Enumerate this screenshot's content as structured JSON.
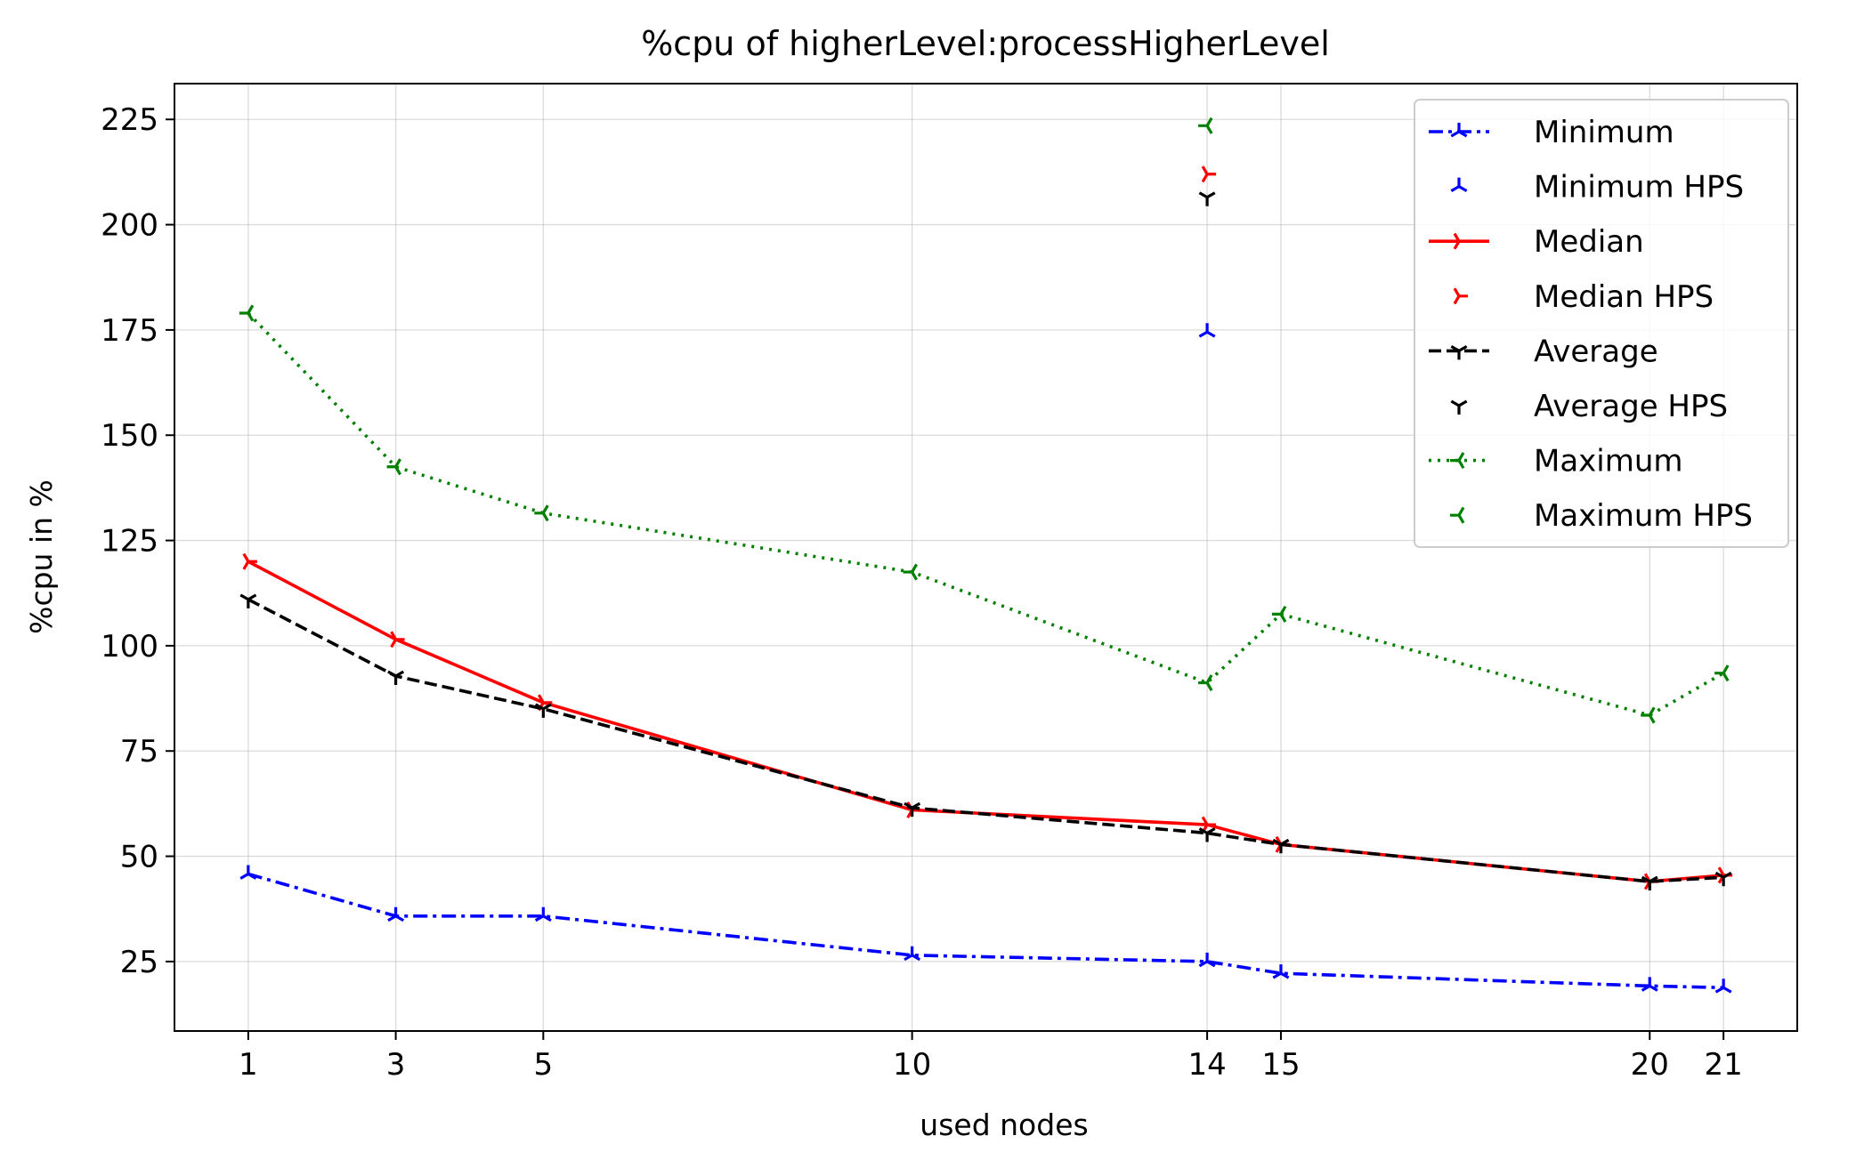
{
  "chart_data": {
    "type": "line",
    "title": "%cpu of higherLevel:processHigherLevel",
    "xlabel": "used nodes",
    "ylabel": "%cpu in %",
    "x_ticks": [
      1,
      3,
      5,
      10,
      14,
      15,
      20,
      21
    ],
    "y_ticks": [
      25,
      50,
      75,
      100,
      125,
      150,
      175,
      200,
      225
    ],
    "xlim": [
      -0.0,
      22.0
    ],
    "ylim": [
      8.5,
      233.5
    ],
    "grid": true,
    "legend_position": "top-right",
    "x": [
      1,
      3,
      5,
      10,
      14,
      15,
      20,
      21
    ],
    "series": [
      {
        "name": "Minimum",
        "values": [
          45.8,
          35.8,
          35.8,
          26.5,
          25.0,
          22.2,
          19.2,
          18.8
        ],
        "color": "#0000ff",
        "dash": "dashdot",
        "marker": "tri-up"
      },
      {
        "name": "Median",
        "values": [
          120.0,
          101.5,
          86.5,
          61.0,
          57.5,
          52.8,
          44.0,
          45.5
        ],
        "color": "#ff0000",
        "dash": "solid",
        "marker": "tri-right"
      },
      {
        "name": "Average",
        "values": [
          111.0,
          92.8,
          85.0,
          61.5,
          55.5,
          52.8,
          44.0,
          45.0
        ],
        "color": "#000000",
        "dash": "dashed",
        "marker": "tri-down"
      },
      {
        "name": "Maximum",
        "values": [
          179.0,
          142.5,
          131.5,
          117.5,
          91.2,
          107.5,
          83.5,
          93.5
        ],
        "color": "#008000",
        "dash": "dotted",
        "marker": "tri-left"
      }
    ],
    "hps_points": [
      {
        "name": "Minimum HPS",
        "x": 14,
        "y": 174.5,
        "color": "#0000ff",
        "marker": "tri-up"
      },
      {
        "name": "Median HPS",
        "x": 14,
        "y": 212.0,
        "color": "#ff0000",
        "marker": "tri-right"
      },
      {
        "name": "Average HPS",
        "x": 14,
        "y": 206.5,
        "color": "#000000",
        "marker": "tri-down"
      },
      {
        "name": "Maximum HPS",
        "x": 14,
        "y": 223.5,
        "color": "#008000",
        "marker": "tri-left"
      }
    ],
    "legend": [
      "Minimum",
      "Minimum HPS",
      "Median",
      "Median HPS",
      "Average",
      "Average HPS",
      "Maximum",
      "Maximum HPS"
    ]
  }
}
